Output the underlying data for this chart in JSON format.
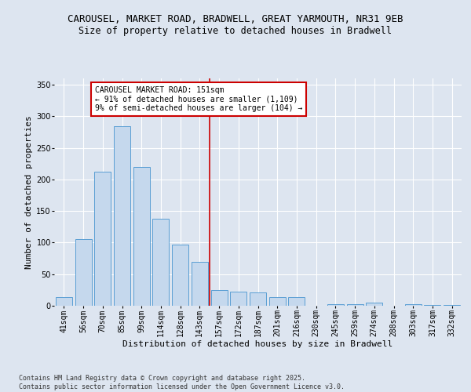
{
  "title_line1": "CAROUSEL, MARKET ROAD, BRADWELL, GREAT YARMOUTH, NR31 9EB",
  "title_line2": "Size of property relative to detached houses in Bradwell",
  "xlabel": "Distribution of detached houses by size in Bradwell",
  "ylabel": "Number of detached properties",
  "categories": [
    "41sqm",
    "56sqm",
    "70sqm",
    "85sqm",
    "99sqm",
    "114sqm",
    "128sqm",
    "143sqm",
    "157sqm",
    "172sqm",
    "187sqm",
    "201sqm",
    "216sqm",
    "230sqm",
    "245sqm",
    "259sqm",
    "274sqm",
    "288sqm",
    "303sqm",
    "317sqm",
    "332sqm"
  ],
  "values": [
    14,
    106,
    212,
    284,
    220,
    138,
    97,
    69,
    25,
    22,
    21,
    14,
    14,
    0,
    3,
    3,
    5,
    0,
    2,
    1,
    1
  ],
  "bar_color": "#c5d8ed",
  "bar_edge_color": "#5a9fd4",
  "marker_label": "CAROUSEL MARKET ROAD: 151sqm",
  "annotation_line1": "← 91% of detached houses are smaller (1,109)",
  "annotation_line2": "9% of semi-detached houses are larger (104) →",
  "marker_color": "#cc0000",
  "annotation_box_color": "#cc0000",
  "ylim": [
    0,
    360
  ],
  "yticks": [
    0,
    50,
    100,
    150,
    200,
    250,
    300,
    350
  ],
  "background_color": "#dde5f0",
  "plot_bg_color": "#dde5f0",
  "footer_text": "Contains HM Land Registry data © Crown copyright and database right 2025.\nContains public sector information licensed under the Open Government Licence v3.0.",
  "title_fontsize": 9,
  "subtitle_fontsize": 8.5,
  "axis_label_fontsize": 8,
  "tick_fontsize": 7,
  "annotation_fontsize": 7,
  "footer_fontsize": 6
}
